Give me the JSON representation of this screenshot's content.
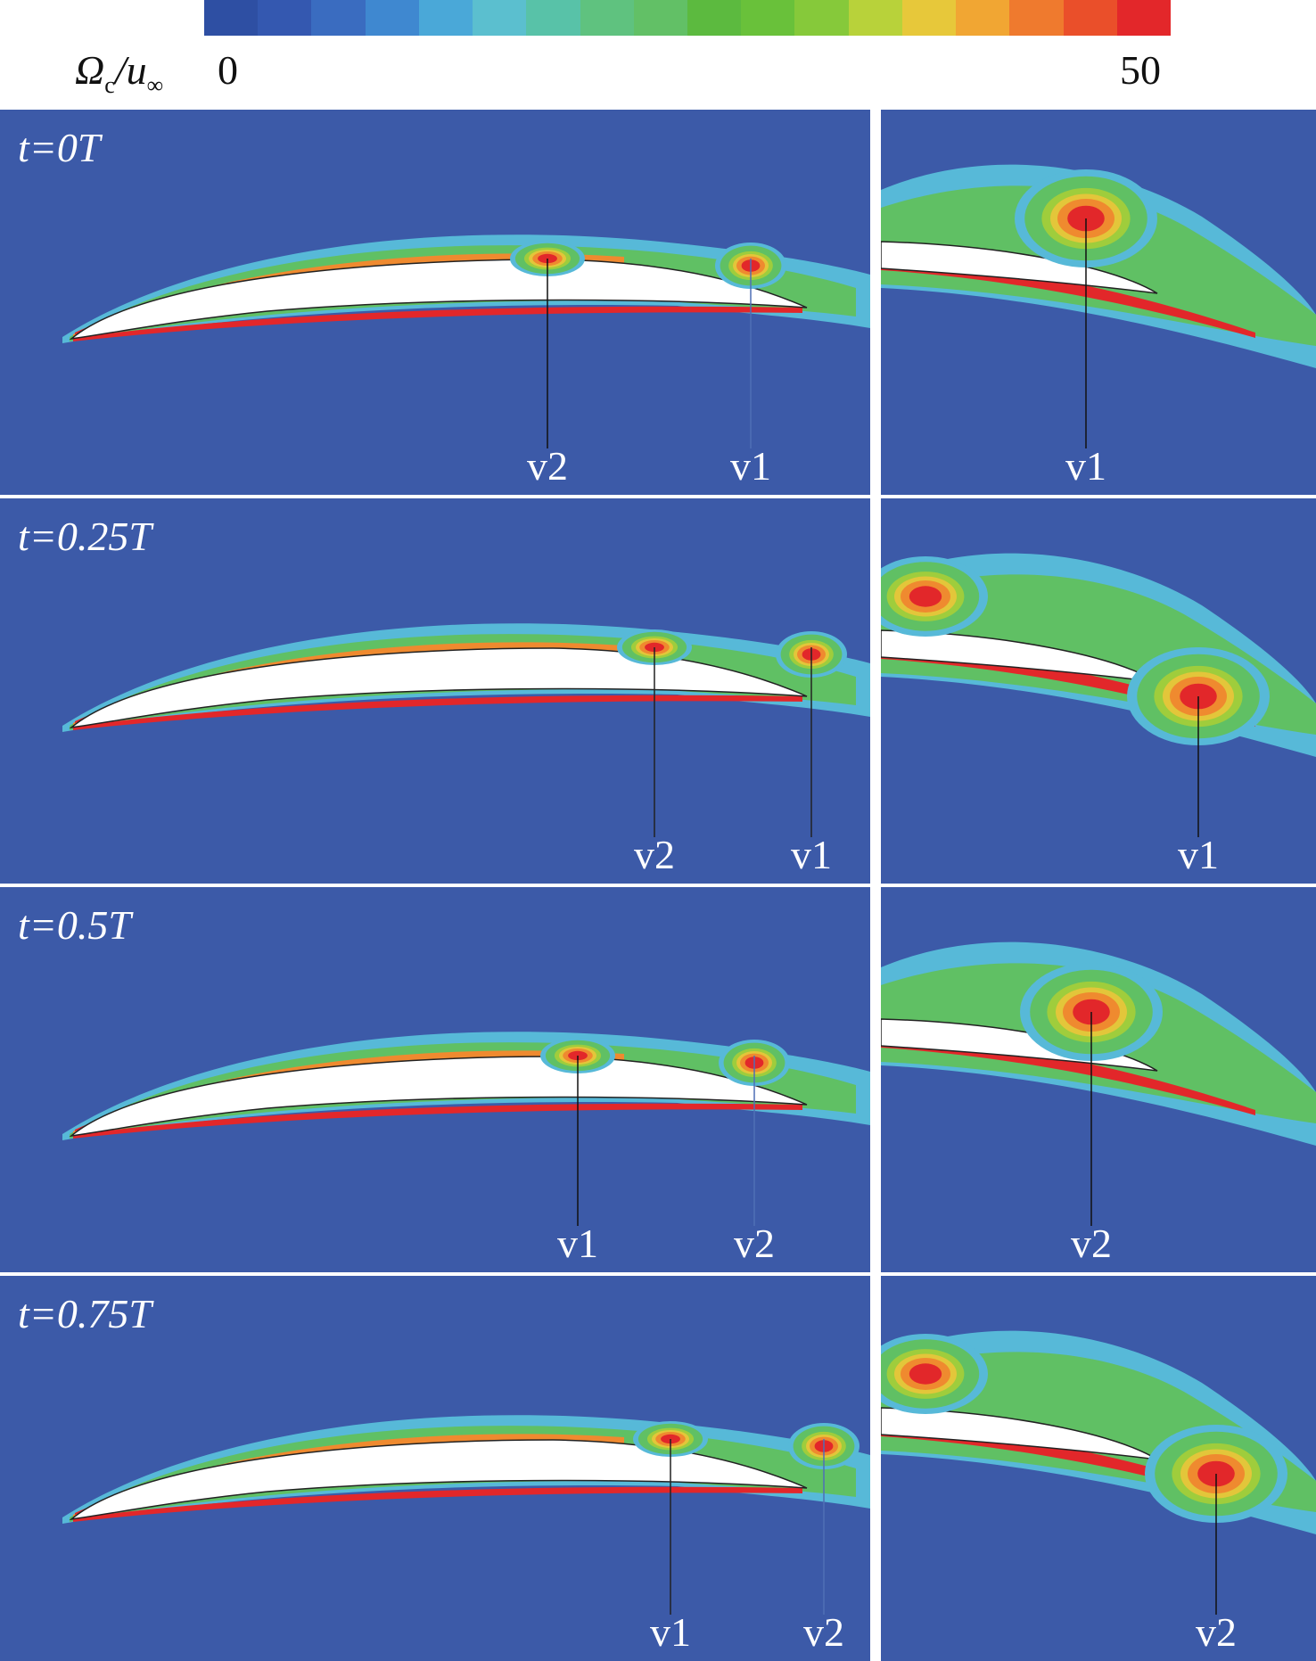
{
  "colorbar": {
    "title_main": "Ω",
    "title_sub": "c",
    "title_rest": "/u",
    "title_sub2": "∞",
    "min_label": "0",
    "max_label": "50",
    "colors": [
      "#2e4fa3",
      "#3458b0",
      "#3a6cc0",
      "#3f88d0",
      "#4aa8d8",
      "#5bbfcf",
      "#58c2a8",
      "#5fc27f",
      "#62c066",
      "#5cba3f",
      "#69c13a",
      "#86c93a",
      "#b8d23a",
      "#e7c83a",
      "#f1a633",
      "#ef7a2e",
      "#ea4f2a",
      "#e3272a"
    ]
  },
  "background_color": "#3c5aa8",
  "panels": [
    {
      "time": "t=0T",
      "left_labels": [
        "v2",
        "v1"
      ],
      "right_label": "v1"
    },
    {
      "time": "t=0.25T",
      "left_labels": [
        "v2",
        "v1"
      ],
      "right_label": "v1"
    },
    {
      "time": "t=0.5T",
      "left_labels": [
        "v1",
        "v2"
      ],
      "right_label": "v2"
    },
    {
      "time": "t=0.75T",
      "left_labels": [
        "v1",
        "v2"
      ],
      "right_label": "v2"
    }
  ]
}
